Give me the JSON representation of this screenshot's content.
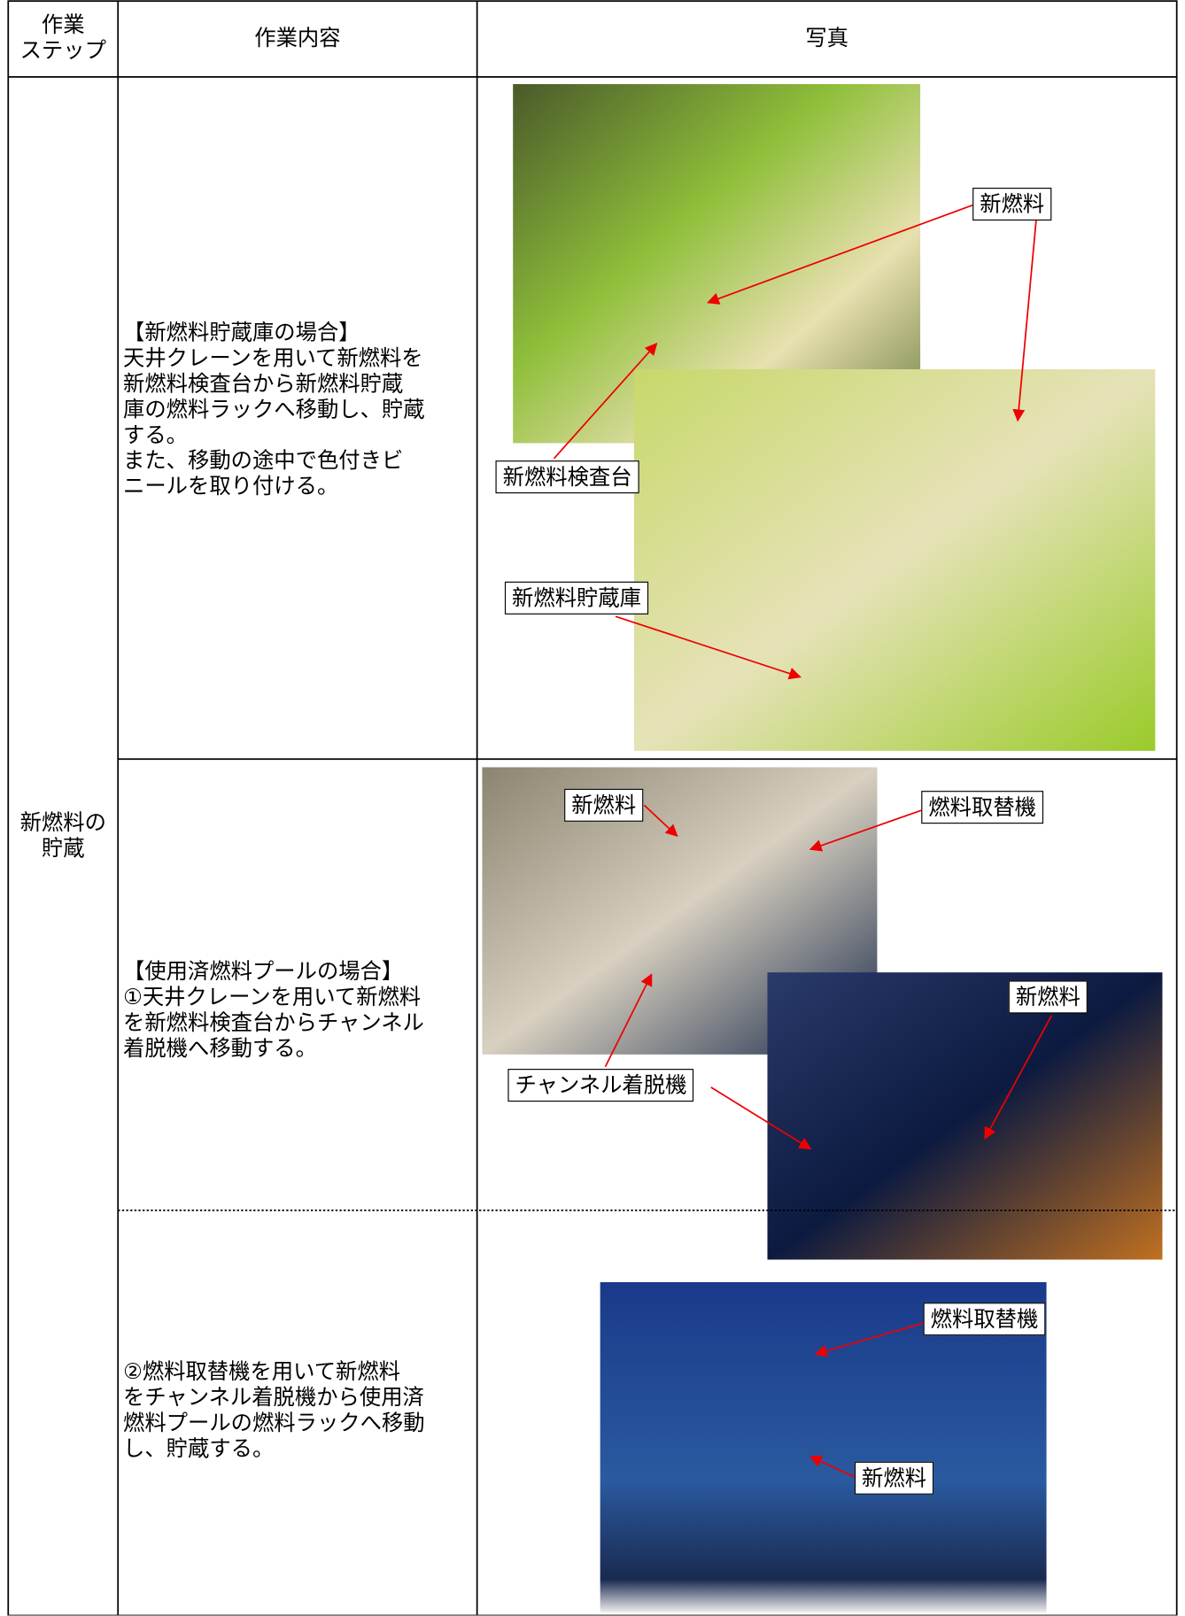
{
  "header": {
    "step": "作業\nステップ",
    "content": "作業内容",
    "photo": "写真"
  },
  "step": "新燃料の\n貯蔵",
  "rows": [
    {
      "content": "【新燃料貯蔵庫の場合】\n天井クレーンを用いて新燃料を\n新燃料検査台から新燃料貯蔵\n庫の燃料ラックへ移動し、貯蔵\nする。\nまた、移動の途中で色付きビ\nニールを取り付ける。",
      "labels": [
        "新燃料",
        "新燃料検査台",
        "新燃料貯蔵庫"
      ]
    },
    {
      "content": "【使用済燃料プールの場合】\n①天井クレーンを用いて新燃料\nを新燃料検査台からチャンネル\n着脱機へ移動する。",
      "labels": [
        "新燃料",
        "燃料取替機",
        "新燃料",
        "チャンネル着脱機"
      ]
    },
    {
      "content": "②燃料取替機を用いて新燃料\nをチャンネル着脱機から使用済\n燃料プールの燃料ラックへ移動\nし、貯蔵する。",
      "labels": [
        "燃料取替機",
        "新燃料"
      ]
    }
  ]
}
